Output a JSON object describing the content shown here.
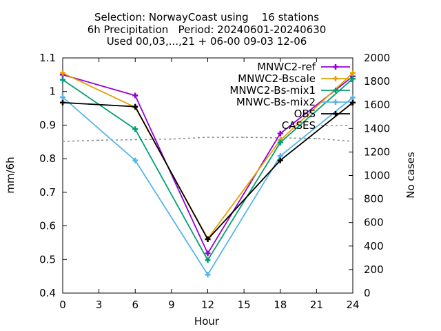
{
  "chart_data": {
    "type": "line",
    "title_lines": [
      "Selection: NorwayCoast using    16 stations",
      "6h Precipitation   Period: 20240601-20240630",
      "Used 00,03,...,21 + 06-00 09-03 12-06"
    ],
    "xlabel": "Hour",
    "ylabel": "mm/6h",
    "y2label": "No cases",
    "xlim": [
      0,
      24
    ],
    "ylim": [
      0.4,
      1.1
    ],
    "y2lim": [
      0,
      2000
    ],
    "xticks": [
      0,
      3,
      6,
      9,
      12,
      15,
      18,
      21,
      24
    ],
    "yticks": [
      "0.4",
      "0.5",
      "0.6",
      "0.7",
      "0.8",
      "0.9",
      "1",
      "1.1"
    ],
    "y2ticks": [
      "0",
      "200",
      "400",
      "600",
      "800",
      "1000",
      "1200",
      "1400",
      "1600",
      "1800",
      "2000"
    ],
    "grid": false,
    "legend_position": "top-right",
    "series": [
      {
        "name": "MNWC2-ref",
        "color": "#9400d3",
        "marker": "plus",
        "x": [
          0,
          6,
          12,
          18,
          24
        ],
        "y": [
          1.05,
          0.988,
          0.518,
          0.875,
          1.045
        ]
      },
      {
        "name": "MNWC2-Bscale",
        "color": "#e69f00",
        "marker": "plus",
        "x": [
          0,
          6,
          12,
          18,
          24
        ],
        "y": [
          1.055,
          0.953,
          0.562,
          0.855,
          1.055
        ]
      },
      {
        "name": "MNWC2-Bs-mix1",
        "color": "#009e73",
        "marker": "plus",
        "x": [
          0,
          6,
          12,
          18,
          24
        ],
        "y": [
          1.035,
          0.888,
          0.498,
          0.848,
          1.038
        ]
      },
      {
        "name": "MNWC-Bs-mix2",
        "color": "#56b4e9",
        "marker": "plus",
        "x": [
          0,
          6,
          12,
          18,
          24
        ],
        "y": [
          0.983,
          0.795,
          0.455,
          0.808,
          0.982
        ]
      },
      {
        "name": "OBS",
        "color": "#000000",
        "marker": "plus",
        "x": [
          0,
          6,
          12,
          18,
          24
        ],
        "y": [
          0.967,
          0.955,
          0.56,
          0.795,
          0.967
        ]
      }
    ],
    "cases": {
      "name": "CASES",
      "color": "#888888",
      "axis": "y2",
      "x": [
        0,
        3,
        6,
        9,
        12,
        15,
        18,
        21,
        24
      ],
      "y": [
        1290,
        1300,
        1305,
        1310,
        1325,
        1325,
        1320,
        1315,
        1290
      ]
    }
  }
}
